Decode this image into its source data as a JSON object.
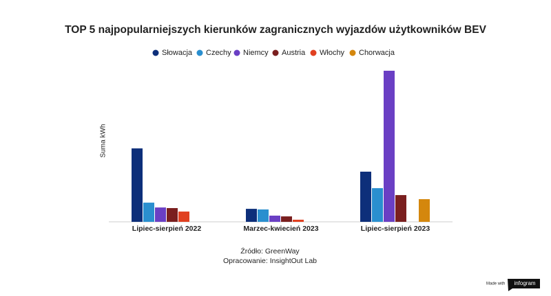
{
  "chart_data": {
    "type": "bar",
    "title": "TOP 5 najpopularniejszych kierunków zagranicznych wyjazdów użytkowników BEV",
    "y_label": "Suma kWh",
    "categories": [
      "Lipiec-sierpień 2022",
      "Marzec-kwiecień 2023",
      "Lipiec-sierpień 2023"
    ],
    "series": [
      {
        "name": "Słowacja",
        "color": "#0d2f7a",
        "values": [
          48.6,
          8.6,
          33.2
        ]
      },
      {
        "name": "Czechy",
        "color": "#2a8fcf",
        "values": [
          12.7,
          8.2,
          22.3
        ]
      },
      {
        "name": "Niemcy",
        "color": "#6a3fc4",
        "values": [
          9.5,
          4.1,
          100
        ]
      },
      {
        "name": "Austria",
        "color": "#7a1f1f",
        "values": [
          9.1,
          3.6,
          17.7
        ]
      },
      {
        "name": "Włochy",
        "color": "#e04020",
        "values": [
          6.8,
          1.4,
          null
        ]
      },
      {
        "name": "Chorwacja",
        "color": "#d4870d",
        "values": [
          null,
          null,
          15
        ]
      }
    ],
    "ylim": [
      0,
      100
    ]
  },
  "footer": {
    "source": "Źródło: GreenWay",
    "credit": "Opracowanie: InsightOut Lab",
    "made_with": "Made with",
    "brand": "infogram"
  }
}
